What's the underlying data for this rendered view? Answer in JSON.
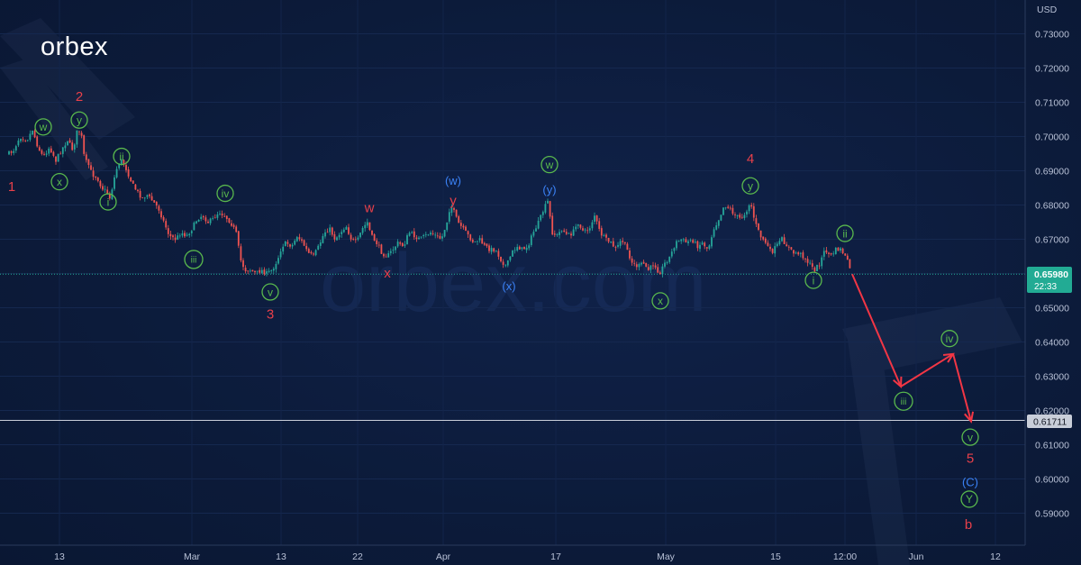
{
  "brand": {
    "logo_text": "orbex",
    "watermark": "orbex.com"
  },
  "chart_data": {
    "type": "candlestick",
    "currency_label": "USD",
    "y_ticks": [
      "0.73000",
      "0.72000",
      "0.71000",
      "0.70000",
      "0.69000",
      "0.68000",
      "0.67000",
      "0.66000",
      "0.65000",
      "0.64000",
      "0.63000",
      "0.62000",
      "0.61000",
      "0.60000",
      "0.59000"
    ],
    "x_ticks": [
      "13",
      "Mar",
      "13",
      "22",
      "Apr",
      "17",
      "May",
      "15",
      "12:00",
      "Jun",
      "12"
    ],
    "ylim": [
      0.583,
      0.7355
    ],
    "current_price": {
      "value": "0.65980",
      "countdown": "22:33",
      "color": "#22ab94"
    },
    "support_level": {
      "value": "0.61711",
      "color": "#c9ced9"
    },
    "price_path": [
      [
        0,
        0.693
      ],
      [
        5,
        0.689
      ],
      [
        10,
        0.695
      ],
      [
        15,
        0.696
      ],
      [
        22,
        0.7
      ],
      [
        30,
        0.699
      ],
      [
        36,
        0.702
      ],
      [
        42,
        0.697
      ],
      [
        48,
        0.694
      ],
      [
        55,
        0.697
      ],
      [
        62,
        0.693
      ],
      [
        68,
        0.696
      ],
      [
        75,
        0.699
      ],
      [
        81,
        0.696
      ],
      [
        86,
        0.702
      ],
      [
        90,
        0.701
      ],
      [
        94,
        0.693
      ],
      [
        98,
        0.692
      ],
      [
        102,
        0.689
      ],
      [
        108,
        0.688
      ],
      [
        113,
        0.685
      ],
      [
        118,
        0.684
      ],
      [
        122,
        0.682
      ],
      [
        127,
        0.688
      ],
      [
        131,
        0.692
      ],
      [
        136,
        0.693
      ],
      [
        141,
        0.69
      ],
      [
        147,
        0.686
      ],
      [
        152,
        0.684
      ],
      [
        158,
        0.682
      ],
      [
        163,
        0.683
      ],
      [
        170,
        0.681
      ],
      [
        176,
        0.679
      ],
      [
        182,
        0.675
      ],
      [
        188,
        0.671
      ],
      [
        195,
        0.67
      ],
      [
        201,
        0.672
      ],
      [
        207,
        0.671
      ],
      [
        213,
        0.673
      ],
      [
        219,
        0.676
      ],
      [
        225,
        0.677
      ],
      [
        231,
        0.675
      ],
      [
        237,
        0.676
      ],
      [
        243,
        0.678
      ],
      [
        249,
        0.677
      ],
      [
        256,
        0.675
      ],
      [
        262,
        0.672
      ],
      [
        267,
        0.664
      ],
      [
        272,
        0.661
      ],
      [
        278,
        0.661
      ],
      [
        284,
        0.66
      ],
      [
        290,
        0.661
      ],
      [
        296,
        0.66
      ],
      [
        302,
        0.661
      ],
      [
        308,
        0.664
      ],
      [
        313,
        0.668
      ],
      [
        318,
        0.669
      ],
      [
        324,
        0.668
      ],
      [
        330,
        0.671
      ],
      [
        336,
        0.669
      ],
      [
        342,
        0.666
      ],
      [
        348,
        0.665
      ],
      [
        354,
        0.668
      ],
      [
        360,
        0.672
      ],
      [
        366,
        0.673
      ],
      [
        372,
        0.67
      ],
      [
        378,
        0.672
      ],
      [
        384,
        0.674
      ],
      [
        390,
        0.67
      ],
      [
        396,
        0.669
      ],
      [
        402,
        0.673
      ],
      [
        408,
        0.675
      ],
      [
        412,
        0.671
      ],
      [
        418,
        0.669
      ],
      [
        424,
        0.666
      ],
      [
        430,
        0.665
      ],
      [
        436,
        0.667
      ],
      [
        442,
        0.669
      ],
      [
        448,
        0.668
      ],
      [
        454,
        0.672
      ],
      [
        460,
        0.671
      ],
      [
        466,
        0.67
      ],
      [
        472,
        0.671
      ],
      [
        478,
        0.672
      ],
      [
        484,
        0.671
      ],
      [
        490,
        0.67
      ],
      [
        496,
        0.675
      ],
      [
        500,
        0.68
      ],
      [
        504,
        0.678
      ],
      [
        508,
        0.675
      ],
      [
        514,
        0.673
      ],
      [
        520,
        0.671
      ],
      [
        526,
        0.669
      ],
      [
        532,
        0.67
      ],
      [
        538,
        0.668
      ],
      [
        544,
        0.667
      ],
      [
        550,
        0.667
      ],
      [
        556,
        0.664
      ],
      [
        562,
        0.662
      ],
      [
        568,
        0.666
      ],
      [
        574,
        0.668
      ],
      [
        580,
        0.667
      ],
      [
        586,
        0.668
      ],
      [
        592,
        0.672
      ],
      [
        598,
        0.675
      ],
      [
        604,
        0.679
      ],
      [
        608,
        0.681
      ],
      [
        613,
        0.672
      ],
      [
        618,
        0.671
      ],
      [
        624,
        0.673
      ],
      [
        630,
        0.671
      ],
      [
        636,
        0.672
      ],
      [
        642,
        0.675
      ],
      [
        648,
        0.672
      ],
      [
        654,
        0.673
      ],
      [
        660,
        0.677
      ],
      [
        666,
        0.672
      ],
      [
        672,
        0.67
      ],
      [
        678,
        0.669
      ],
      [
        684,
        0.667
      ],
      [
        690,
        0.67
      ],
      [
        696,
        0.667
      ],
      [
        702,
        0.663
      ],
      [
        708,
        0.662
      ],
      [
        714,
        0.663
      ],
      [
        720,
        0.661
      ],
      [
        726,
        0.663
      ],
      [
        732,
        0.66
      ],
      [
        738,
        0.663
      ],
      [
        744,
        0.665
      ],
      [
        750,
        0.669
      ],
      [
        756,
        0.67
      ],
      [
        762,
        0.669
      ],
      [
        768,
        0.67
      ],
      [
        774,
        0.668
      ],
      [
        780,
        0.669
      ],
      [
        786,
        0.667
      ],
      [
        792,
        0.673
      ],
      [
        798,
        0.676
      ],
      [
        804,
        0.68
      ],
      [
        810,
        0.679
      ],
      [
        816,
        0.677
      ],
      [
        822,
        0.676
      ],
      [
        828,
        0.678
      ],
      [
        833,
        0.681
      ],
      [
        838,
        0.675
      ],
      [
        844,
        0.671
      ],
      [
        850,
        0.669
      ],
      [
        856,
        0.666
      ],
      [
        862,
        0.668
      ],
      [
        868,
        0.67
      ],
      [
        874,
        0.668
      ],
      [
        880,
        0.666
      ],
      [
        886,
        0.666
      ],
      [
        892,
        0.665
      ],
      [
        898,
        0.663
      ],
      [
        904,
        0.661
      ],
      [
        910,
        0.663
      ],
      [
        916,
        0.667
      ],
      [
        922,
        0.665
      ],
      [
        928,
        0.667
      ],
      [
        934,
        0.667
      ],
      [
        940,
        0.664
      ],
      [
        946,
        0.66
      ]
    ],
    "projection": [
      [
        946,
        0.6598
      ],
      [
        1000,
        0.627
      ],
      [
        1058,
        0.6365
      ],
      [
        1078,
        0.6168
      ]
    ],
    "wave_labels": [
      {
        "text": "1",
        "style": "plain",
        "color": "#e8404a",
        "x": 13,
        "price": 0.6855
      },
      {
        "text": "2",
        "style": "plain",
        "color": "#e8404a",
        "x": 88,
        "price": 0.7118
      },
      {
        "text": "w",
        "style": "circle",
        "color": "#59b84d",
        "x": 48,
        "price": 0.7028
      },
      {
        "text": "x",
        "style": "circle",
        "color": "#59b84d",
        "x": 66,
        "price": 0.6868
      },
      {
        "text": "y",
        "style": "circle",
        "color": "#59b84d",
        "x": 88,
        "price": 0.7048
      },
      {
        "text": "i",
        "style": "circle",
        "color": "#59b84d",
        "x": 120,
        "price": 0.6809
      },
      {
        "text": "ii",
        "style": "circle",
        "color": "#59b84d",
        "x": 135,
        "price": 0.6942
      },
      {
        "text": "iii",
        "style": "circle",
        "color": "#59b84d",
        "x": 215,
        "price": 0.6641
      },
      {
        "text": "iv",
        "style": "circle",
        "color": "#59b84d",
        "x": 250,
        "price": 0.6834
      },
      {
        "text": "v",
        "style": "circle",
        "color": "#59b84d",
        "x": 300,
        "price": 0.6546
      },
      {
        "text": "3",
        "style": "plain",
        "color": "#e8404a",
        "x": 300,
        "price": 0.6482
      },
      {
        "text": "w",
        "style": "plain",
        "color": "#e8404a",
        "x": 410,
        "price": 0.6793
      },
      {
        "text": "x",
        "style": "plain",
        "color": "#e8404a",
        "x": 430,
        "price": 0.6603
      },
      {
        "text": "(w)",
        "style": "plain",
        "color": "#3b82f6",
        "x": 503,
        "price": 0.6871
      },
      {
        "text": "y",
        "style": "plain",
        "color": "#e8404a",
        "x": 503,
        "price": 0.6814
      },
      {
        "text": "(x)",
        "style": "plain",
        "color": "#3b82f6",
        "x": 565,
        "price": 0.6563
      },
      {
        "text": "w",
        "style": "circle",
        "color": "#59b84d",
        "x": 610,
        "price": 0.6918
      },
      {
        "text": "(y)",
        "style": "plain",
        "color": "#3b82f6",
        "x": 610,
        "price": 0.6845
      },
      {
        "text": "x",
        "style": "circle",
        "color": "#59b84d",
        "x": 733,
        "price": 0.652
      },
      {
        "text": "4",
        "style": "plain",
        "color": "#e8404a",
        "x": 833,
        "price": 0.6937
      },
      {
        "text": "y",
        "style": "circle",
        "color": "#59b84d",
        "x": 833,
        "price": 0.6856
      },
      {
        "text": "ii",
        "style": "circle",
        "color": "#59b84d",
        "x": 938,
        "price": 0.6717
      },
      {
        "text": "i",
        "style": "circle",
        "color": "#59b84d",
        "x": 903,
        "price": 0.658
      },
      {
        "text": "iii",
        "style": "circle",
        "color": "#59b84d",
        "x": 1003,
        "price": 0.6227
      },
      {
        "text": "iv",
        "style": "circle",
        "color": "#59b84d",
        "x": 1054,
        "price": 0.641
      },
      {
        "text": "v",
        "style": "circle",
        "color": "#59b84d",
        "x": 1077,
        "price": 0.6122
      },
      {
        "text": "5",
        "style": "plain",
        "color": "#e8404a",
        "x": 1077,
        "price": 0.6062
      },
      {
        "text": "(C)",
        "style": "plain",
        "color": "#3b82f6",
        "x": 1077,
        "price": 0.5991
      },
      {
        "text": "Y",
        "style": "circle",
        "color": "#59b84d",
        "x": 1076,
        "price": 0.5941
      },
      {
        "text": "b",
        "style": "plain",
        "color": "#e8404a",
        "x": 1075,
        "price": 0.5868
      }
    ]
  }
}
